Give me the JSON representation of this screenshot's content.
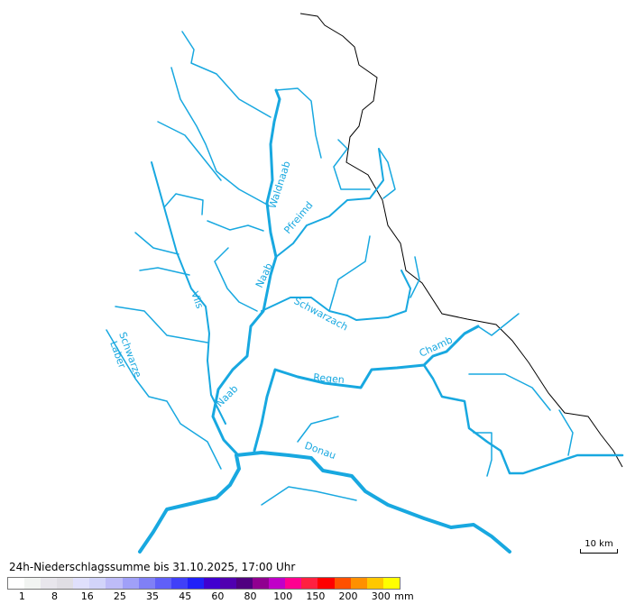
{
  "map": {
    "river_color": "#18a8e0",
    "border_color": "#000000",
    "labels": {
      "waldnaab": "Waldnaab",
      "pfreimd": "Pfreimd",
      "naab_upper": "Naab",
      "vils": "Vils",
      "schwarzach": "Schwarzach",
      "schwarze_laber_1": "Schwarze",
      "schwarze_laber_2": "Laber",
      "regen": "Regen",
      "chamb": "Chamb",
      "naab_lower": "Naab",
      "donau": "Donau"
    },
    "scale_label": "10 km"
  },
  "legend": {
    "title": "24h-Niederschlagssumme bis 31.10.2025, 17:00 Uhr",
    "unit": "mm",
    "colors": [
      "#ffffff",
      "#f2f4f2",
      "#e8e6ec",
      "#e0dee4",
      "#e0e0fc",
      "#d2d4fa",
      "#bebcf8",
      "#a0a0f8",
      "#8080f6",
      "#6060f8",
      "#4040f8",
      "#2020f8",
      "#4000d0",
      "#5000b0",
      "#500080",
      "#900090",
      "#c000c8",
      "#ff0090",
      "#ff2040",
      "#ff0000",
      "#ff5000",
      "#ff9000",
      "#ffc800",
      "#ffff00"
    ],
    "ticks": [
      "1",
      "8",
      "16",
      "25",
      "35",
      "45",
      "60",
      "80",
      "100",
      "150",
      "200",
      "300"
    ]
  }
}
